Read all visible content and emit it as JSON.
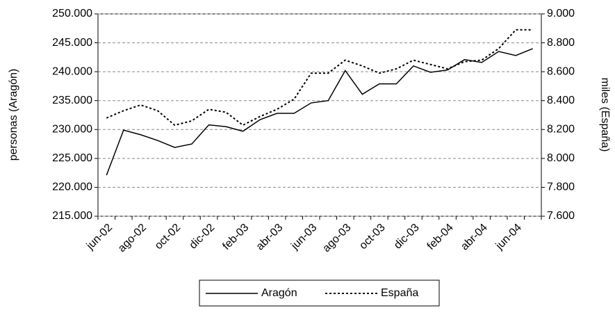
{
  "chart_data": {
    "type": "line",
    "y_label": "personas (Aragón)",
    "y2_label": "miles (España)",
    "categories": [
      "jun-02",
      null,
      "ago-02",
      null,
      "oct-02",
      null,
      "dic-02",
      null,
      "feb-03",
      null,
      "abr-03",
      null,
      "jun-03",
      null,
      "ago-03",
      null,
      "oct-03",
      null,
      "dic-03",
      null,
      "feb-04",
      null,
      "abr-04",
      null,
      "jun-04",
      null
    ],
    "series": [
      {
        "name": "Aragón",
        "color": "#000000",
        "dash": "solid",
        "values": [
          222100,
          229900,
          229100,
          228100,
          226900,
          227500,
          230800,
          230500,
          229700,
          231700,
          232800,
          232800,
          234600,
          235000,
          240200,
          236100,
          237900,
          237900,
          241000,
          239900,
          240300,
          242100,
          241600,
          243500,
          242800,
          244000
        ]
      },
      {
        "name": "España",
        "color": "#000000",
        "dash": "dotted",
        "axis": "y2",
        "values": [
          8280,
          8330,
          8370,
          8330,
          8230,
          8260,
          8340,
          8320,
          8230,
          8290,
          8340,
          8410,
          8590,
          8590,
          8680,
          8640,
          8590,
          8620,
          8680,
          8650,
          8620,
          8670,
          8680,
          8760,
          8890,
          8890
        ]
      }
    ],
    "ylim": [
      215000,
      250000
    ],
    "yticks": [
      {
        "value": 215000,
        "label": "215.000"
      },
      {
        "value": 220000,
        "label": "220.000"
      },
      {
        "value": 225000,
        "label": "225.000"
      },
      {
        "value": 230000,
        "label": "230.000"
      },
      {
        "value": 235000,
        "label": "235.000"
      },
      {
        "value": 240000,
        "label": "240.000"
      },
      {
        "value": 245000,
        "label": "245.000"
      },
      {
        "value": 250000,
        "label": "250.000"
      }
    ],
    "y2lim": [
      7600,
      9000
    ],
    "y2ticks": [
      {
        "value": 7600,
        "label": "7.600"
      },
      {
        "value": 7800,
        "label": "7.800"
      },
      {
        "value": 8000,
        "label": "8.000"
      },
      {
        "value": 8200,
        "label": "8.200"
      },
      {
        "value": 8400,
        "label": "8.400"
      },
      {
        "value": 8600,
        "label": "8.600"
      },
      {
        "value": 8800,
        "label": "8.800"
      },
      {
        "value": 9000,
        "label": "9.000"
      }
    ],
    "grid": true,
    "legend": "bottom"
  }
}
